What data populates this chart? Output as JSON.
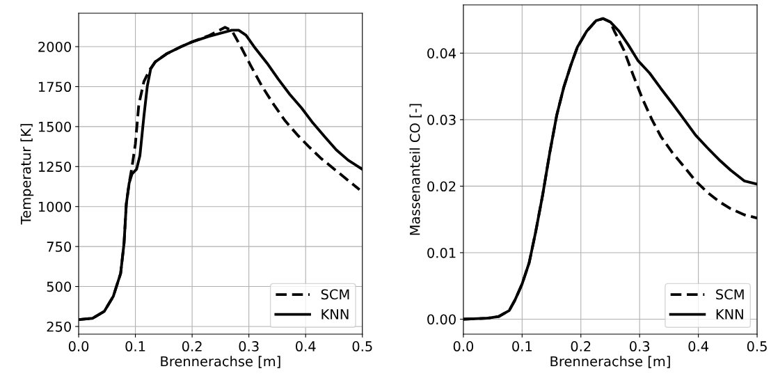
{
  "chart_data": [
    {
      "type": "line",
      "xlabel": "Brennerachse [m]",
      "ylabel": "Temperatur [K]",
      "xlim": [
        0,
        0.5
      ],
      "xticks": [
        {
          "value": 0,
          "label": "0.0"
        },
        0.1,
        0.2,
        0.3,
        0.4,
        0.5
      ],
      "ylim": [
        202,
        2209
      ],
      "yticks": [
        250,
        500,
        750,
        1000,
        1250,
        1500,
        1750,
        2000
      ],
      "grid": true,
      "legend": "bottom right",
      "series": [
        {
          "name": "SCM",
          "color": "#000000",
          "line_style": "dashed",
          "x": [
            0,
            0.0245,
            0.045,
            0.061,
            0.074,
            0.08,
            0.084,
            0.089,
            0.094,
            0.1,
            0.106,
            0.115,
            0.125,
            0.135,
            0.155,
            0.18,
            0.2,
            0.229,
            0.258,
            0.27,
            0.286,
            0.303,
            0.323,
            0.344,
            0.364,
            0.385,
            0.405,
            0.426,
            0.446,
            0.466,
            0.491,
            0.495
          ],
          "values": [
            293,
            301,
            344,
            438,
            582,
            770,
            1016,
            1146,
            1247,
            1392,
            1637,
            1782,
            1854,
            1905,
            1955,
            1999,
            2030,
            2068,
            2121,
            2100,
            1999,
            1883,
            1753,
            1637,
            1536,
            1450,
            1377,
            1305,
            1247,
            1189,
            1117,
            1105
          ]
        },
        {
          "name": "KNN",
          "color": "#000000",
          "line_style": "solid",
          "x": [
            0,
            0.0245,
            0.045,
            0.061,
            0.074,
            0.08,
            0.084,
            0.089,
            0.094,
            0.102,
            0.108,
            0.115,
            0.121,
            0.127,
            0.135,
            0.155,
            0.18,
            0.2,
            0.229,
            0.254,
            0.27,
            0.282,
            0.295,
            0.311,
            0.332,
            0.352,
            0.372,
            0.393,
            0.413,
            0.434,
            0.454,
            0.475,
            0.5
          ],
          "values": [
            293,
            301,
            344,
            438,
            582,
            770,
            1016,
            1146,
            1204,
            1233,
            1319,
            1565,
            1753,
            1861,
            1905,
            1955,
            1999,
            2030,
            2064,
            2088,
            2103,
            2103,
            2071,
            1991,
            1897,
            1796,
            1702,
            1616,
            1522,
            1435,
            1355,
            1290,
            1233
          ]
        }
      ]
    },
    {
      "type": "line",
      "xlabel": "Brennerachse [m]",
      "ylabel": "Massenanteil CO [-]",
      "xlim": [
        0,
        0.5
      ],
      "xticks": [
        {
          "value": 0,
          "label": "0.0"
        },
        0.1,
        0.2,
        0.3,
        0.4,
        0.5
      ],
      "ylim": [
        -0.00225,
        0.04725
      ],
      "yticks": [
        {
          "value": 0,
          "label": "0.00"
        },
        0.01,
        0.02,
        0.03,
        0.04
      ],
      "grid": true,
      "legend": "bottom right",
      "series": [
        {
          "name": "SCM",
          "color": "#000000",
          "line_style": "dashed",
          "x": [
            0,
            0.041,
            0.06,
            0.078,
            0.088,
            0.1,
            0.112,
            0.123,
            0.135,
            0.147,
            0.159,
            0.171,
            0.183,
            0.194,
            0.21,
            0.226,
            0.238,
            0.25,
            0.257,
            0.273,
            0.289,
            0.305,
            0.321,
            0.336,
            0.356,
            0.376,
            0.395,
            0.415,
            0.435,
            0.455,
            0.478,
            0.5
          ],
          "values": [
            0,
            0.00014,
            0.0004,
            0.0013,
            0.0029,
            0.0053,
            0.0085,
            0.0131,
            0.0187,
            0.025,
            0.0307,
            0.0349,
            0.0382,
            0.0409,
            0.0433,
            0.0449,
            0.0452,
            0.0447,
            0.0433,
            0.0405,
            0.0367,
            0.0331,
            0.03,
            0.0275,
            0.025,
            0.0229,
            0.0208,
            0.0191,
            0.0177,
            0.0166,
            0.0157,
            0.0152
          ]
        },
        {
          "name": "KNN",
          "color": "#000000",
          "line_style": "solid",
          "x": [
            0,
            0.041,
            0.06,
            0.078,
            0.088,
            0.1,
            0.112,
            0.123,
            0.135,
            0.147,
            0.159,
            0.171,
            0.183,
            0.194,
            0.21,
            0.226,
            0.238,
            0.25,
            0.265,
            0.281,
            0.297,
            0.317,
            0.336,
            0.356,
            0.376,
            0.395,
            0.415,
            0.435,
            0.455,
            0.478,
            0.5
          ],
          "values": [
            0,
            0.00014,
            0.0004,
            0.0013,
            0.0029,
            0.0053,
            0.0085,
            0.0131,
            0.0187,
            0.025,
            0.0307,
            0.0349,
            0.0382,
            0.0409,
            0.0433,
            0.0449,
            0.0452,
            0.0447,
            0.0433,
            0.0412,
            0.0389,
            0.037,
            0.0347,
            0.0324,
            0.03,
            0.0277,
            0.0258,
            0.024,
            0.0224,
            0.0208,
            0.0203
          ]
        }
      ]
    }
  ]
}
